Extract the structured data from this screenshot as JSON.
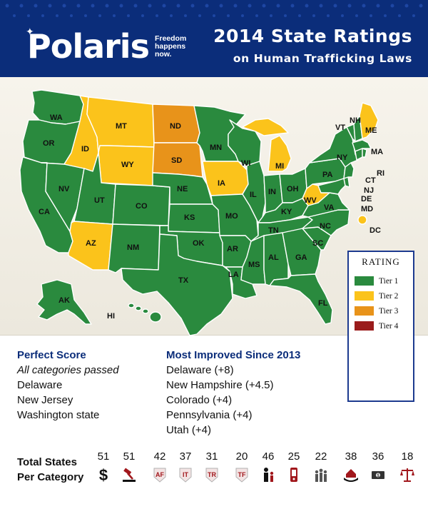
{
  "header": {
    "logo": "Polaris",
    "tagline": "Freedom happens now.",
    "title_line1": "2014 State Ratings",
    "title_line2": "on Human Trafficking Laws",
    "bg_color": "#0b2d7a"
  },
  "tier_colors": {
    "Tier 1": "#2a8a3e",
    "Tier 2": "#fbc31b",
    "Tier 3": "#e8931a",
    "Tier 4": "#9a1c1c"
  },
  "legend": {
    "title": "RATING",
    "items": [
      {
        "label": "Tier 1",
        "color": "#2a8a3e"
      },
      {
        "label": "Tier 2",
        "color": "#fbc31b"
      },
      {
        "label": "Tier 3",
        "color": "#e8931a"
      },
      {
        "label": "Tier 4",
        "color": "#9a1c1c"
      }
    ]
  },
  "states": {
    "WA": "Tier 1",
    "OR": "Tier 1",
    "CA": "Tier 1",
    "NV": "Tier 1",
    "ID": "Tier 2",
    "MT": "Tier 2",
    "WY": "Tier 2",
    "UT": "Tier 1",
    "AZ": "Tier 2",
    "CO": "Tier 1",
    "NM": "Tier 1",
    "ND": "Tier 3",
    "SD": "Tier 3",
    "NE": "Tier 1",
    "KS": "Tier 1",
    "OK": "Tier 1",
    "TX": "Tier 1",
    "MN": "Tier 1",
    "IA": "Tier 2",
    "MO": "Tier 1",
    "AR": "Tier 1",
    "LA": "Tier 1",
    "WI": "Tier 1",
    "IL": "Tier 1",
    "MI": "Tier 2",
    "IN": "Tier 1",
    "OH": "Tier 1",
    "KY": "Tier 1",
    "TN": "Tier 1",
    "MS": "Tier 1",
    "AL": "Tier 1",
    "GA": "Tier 1",
    "FL": "Tier 1",
    "SC": "Tier 1",
    "NC": "Tier 1",
    "VA": "Tier 1",
    "WV": "Tier 2",
    "PA": "Tier 1",
    "NY": "Tier 1",
    "VT": "Tier 1",
    "NH": "Tier 1",
    "ME": "Tier 2",
    "MA": "Tier 1",
    "RI": "Tier 1",
    "CT": "Tier 1",
    "NJ": "Tier 1",
    "DE": "Tier 1",
    "MD": "Tier 1",
    "DC": "Tier 2",
    "AK": "Tier 1",
    "HI": "Tier 1"
  },
  "perfect_score": {
    "heading": "Perfect Score",
    "subheading": "All categories passed",
    "items": [
      "Delaware",
      "New Jersey",
      "Washington state"
    ]
  },
  "most_improved": {
    "heading": "Most Improved Since 2013",
    "items": [
      "Delaware (+8)",
      "New Hampshire (+4.5)",
      "Colorado (+4)",
      "Pennsylvania (+4)",
      "Utah (+4)"
    ]
  },
  "totals": {
    "label_line1": "Total States",
    "label_line2": "Per Category",
    "categories": [
      {
        "count": "51",
        "icon": "dollar-icon"
      },
      {
        "count": "51",
        "icon": "gavel-icon"
      },
      {
        "count": "42",
        "icon": "af-badge-icon",
        "text": "AF"
      },
      {
        "count": "37",
        "icon": "it-badge-icon",
        "text": "IT"
      },
      {
        "count": "31",
        "icon": "tr-badge-icon",
        "text": "TR"
      },
      {
        "count": "20",
        "icon": "tf-badge-icon",
        "text": "TF"
      },
      {
        "count": "46",
        "icon": "adult-child-icon"
      },
      {
        "count": "25",
        "icon": "phone-icon"
      },
      {
        "count": "22",
        "icon": "people-group-icon"
      },
      {
        "count": "38",
        "icon": "house-hands-icon"
      },
      {
        "count": "36",
        "icon": "money-icon"
      },
      {
        "count": "18",
        "icon": "scales-icon"
      }
    ]
  }
}
